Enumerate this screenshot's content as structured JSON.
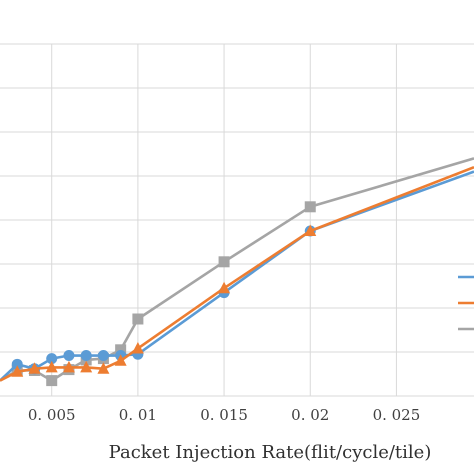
{
  "chart_data": {
    "type": "line",
    "xlabel": "Packet Injection Rate(flit/cycle/tile)",
    "ylabel": "",
    "title": "",
    "x_tick_labels": [
      "0. 005",
      "0. 01",
      "0. 015",
      "0. 02",
      "0. 025"
    ],
    "x_ticks": [
      0.005,
      0.01,
      0.015,
      0.02,
      0.025
    ],
    "xlim": [
      0.002,
      0.0295
    ],
    "ylim": [
      0,
      8
    ],
    "grid": "vertical and horizontal",
    "legend": "right, labels cut off",
    "series": [
      {
        "color": "#5b9bd5",
        "marker": "circle",
        "x": [
          0.002,
          0.003,
          0.004,
          0.005,
          0.006,
          0.007,
          0.008,
          0.009,
          0.01,
          0.015,
          0.02,
          0.0295
        ],
        "y": [
          0.35,
          0.72,
          0.62,
          0.85,
          0.92,
          0.92,
          0.92,
          0.92,
          0.95,
          2.35,
          3.75,
          5.1
        ]
      },
      {
        "color": "#ed7d31",
        "marker": "triangle",
        "x": [
          0.002,
          0.003,
          0.004,
          0.005,
          0.006,
          0.007,
          0.008,
          0.009,
          0.01,
          0.015,
          0.02,
          0.0295
        ],
        "y": [
          0.35,
          0.55,
          0.62,
          0.65,
          0.65,
          0.65,
          0.62,
          0.8,
          1.08,
          2.45,
          3.75,
          5.2
        ]
      },
      {
        "color": "#a5a5a5",
        "marker": "square",
        "x": [
          0.002,
          0.003,
          0.004,
          0.005,
          0.006,
          0.007,
          0.008,
          0.009,
          0.01,
          0.015,
          0.02,
          0.0295
        ],
        "y": [
          0.35,
          0.58,
          0.58,
          0.35,
          0.6,
          0.82,
          0.85,
          1.05,
          1.75,
          3.05,
          4.3,
          5.4
        ]
      }
    ]
  }
}
